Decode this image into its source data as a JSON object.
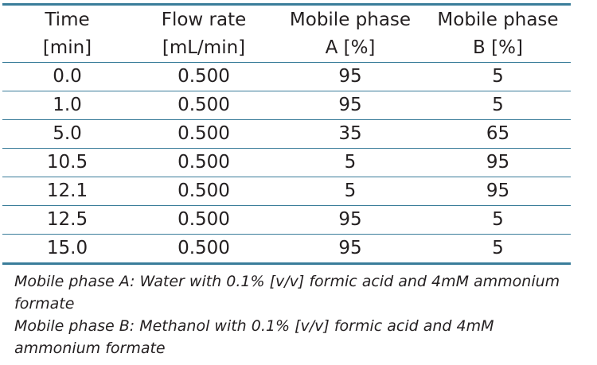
{
  "table": {
    "header": [
      {
        "line1": "Time",
        "line2": "[min]"
      },
      {
        "line1": "Flow rate",
        "line2": "[mL/min]"
      },
      {
        "line1": "Mobile phase",
        "line2": "A [%]"
      },
      {
        "line1": "Mobile phase",
        "line2": "B [%]"
      }
    ],
    "rows": [
      [
        "0.0",
        "0.500",
        "95",
        "5"
      ],
      [
        "1.0",
        "0.500",
        "95",
        "5"
      ],
      [
        "5.0",
        "0.500",
        "35",
        "65"
      ],
      [
        "10.5",
        "0.500",
        "5",
        "95"
      ],
      [
        "12.1",
        "0.500",
        "5",
        "95"
      ],
      [
        "12.5",
        "0.500",
        "95",
        "5"
      ],
      [
        "15.0",
        "0.500",
        "95",
        "5"
      ]
    ]
  },
  "notes": [
    "Mobile phase A: Water with 0.1% [v/v] formic acid and 4mM ammonium formate",
    "Mobile phase B: Methanol with 0.1% [v/v] formic acid and 4mM ammonium formate"
  ],
  "colors": {
    "rule": "#3a7d9a",
    "text": "#231f20"
  }
}
